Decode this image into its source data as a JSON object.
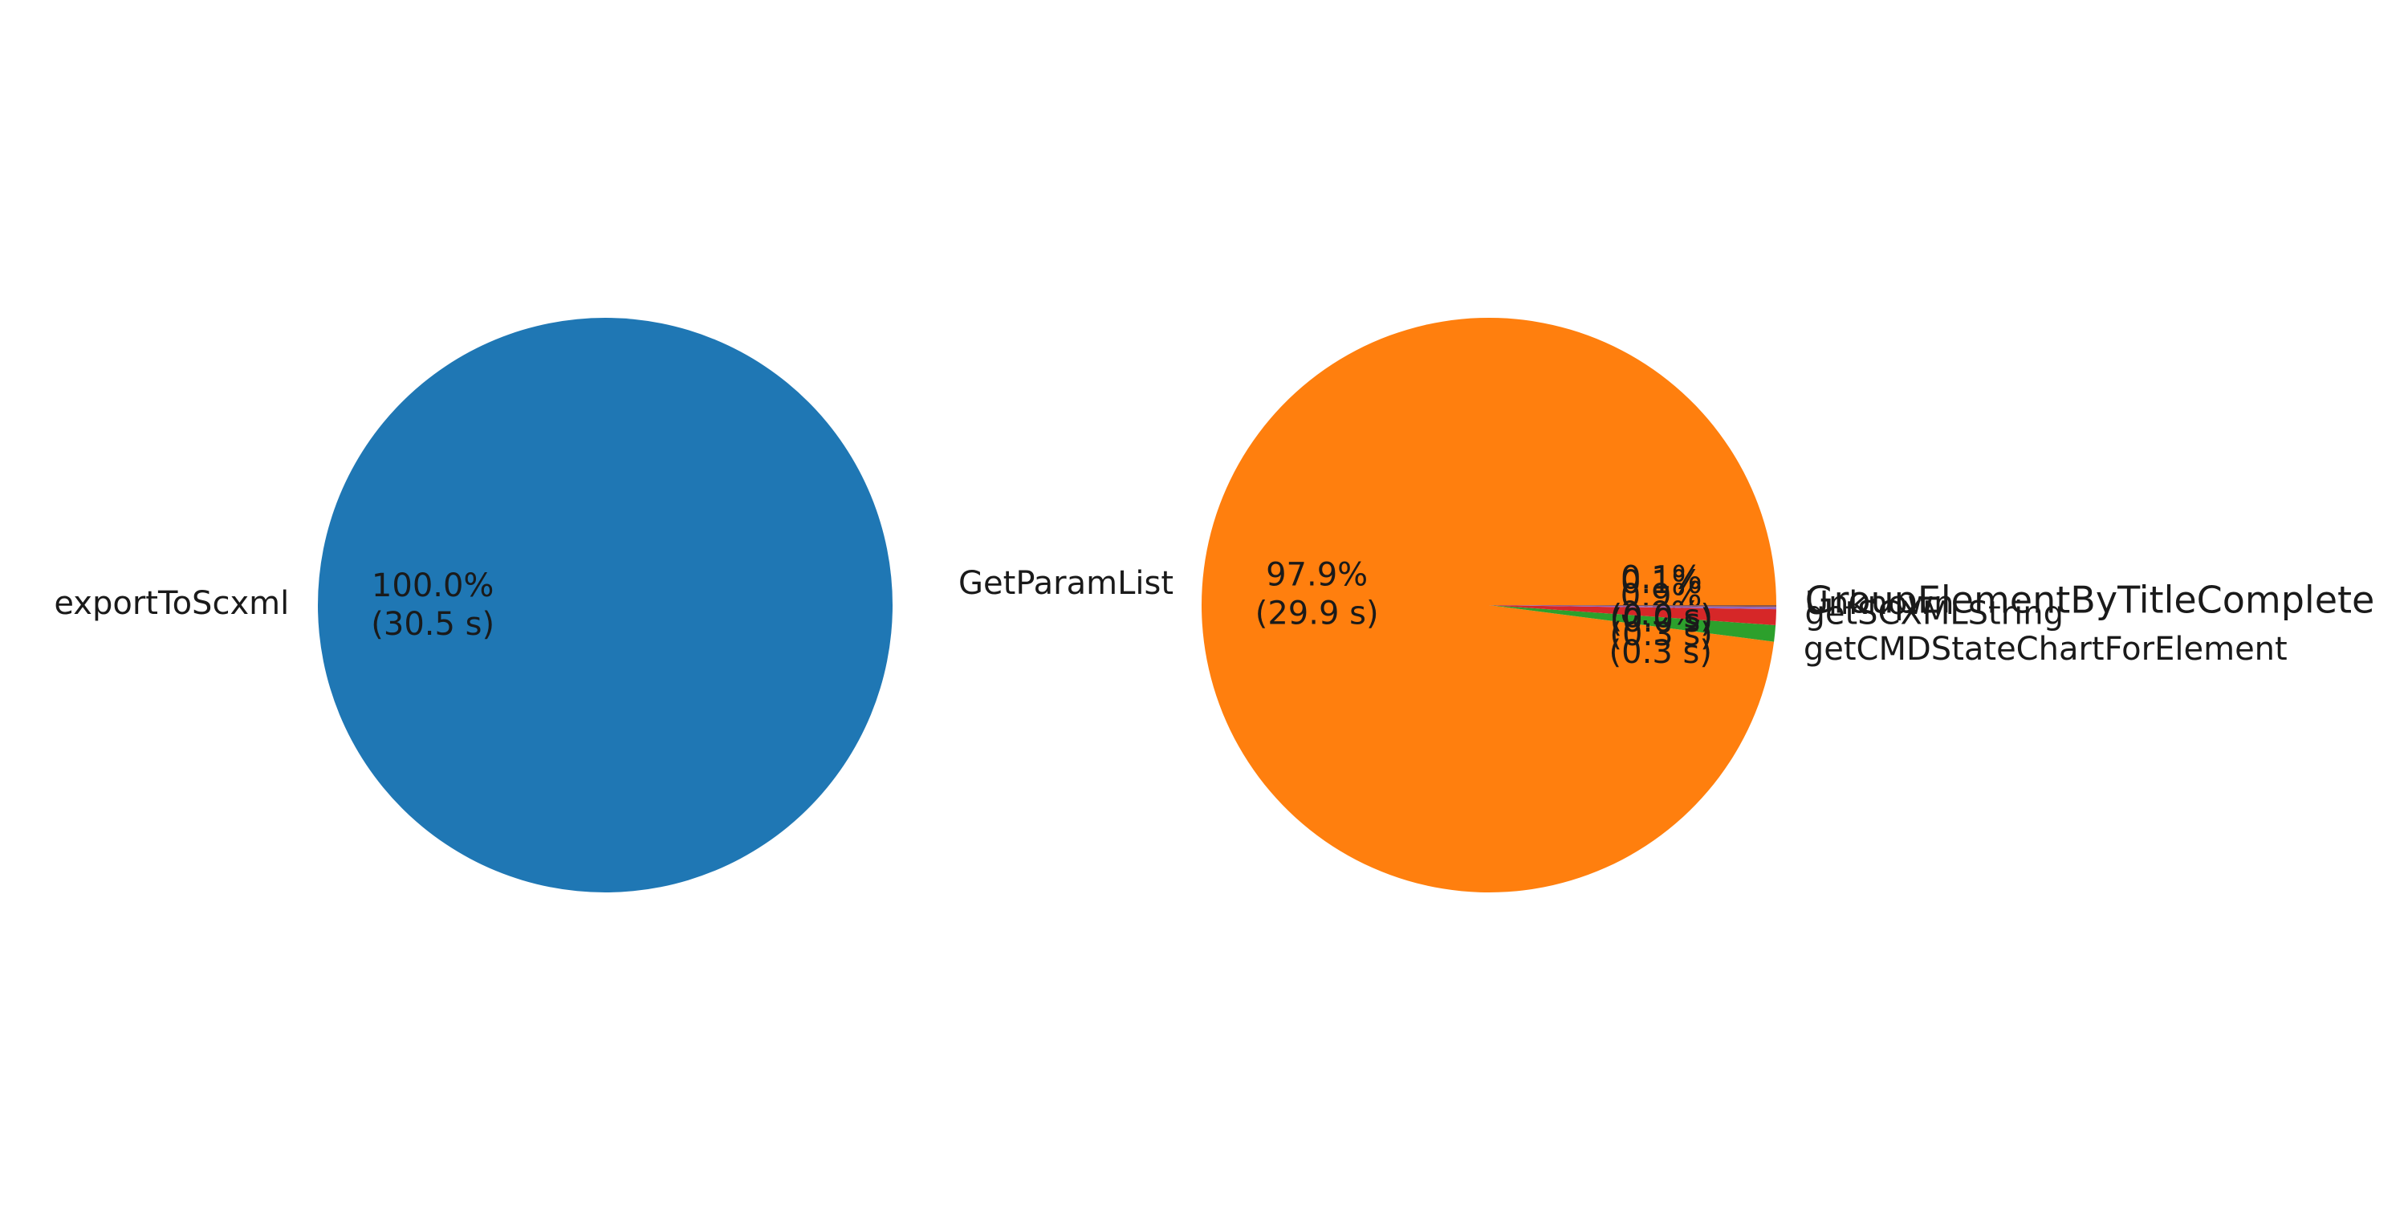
{
  "chart_data": [
    {
      "type": "pie",
      "title": "",
      "start_angle": 0,
      "counterclock": true,
      "slices": [
        {
          "label": "exportToScxml",
          "pct_text": "100.0%",
          "time_text": "(30.5 s)",
          "value": 30.5,
          "color": "#1f77b4"
        }
      ]
    },
    {
      "type": "pie",
      "title": "",
      "start_angle": 0,
      "counterclock": true,
      "slices": [
        {
          "label": "GetParamList",
          "pct_text": "97.9%",
          "time_text": "(29.9 s)",
          "value": 29.9,
          "color": "#ff7f0e"
        },
        {
          "label": "getCMDStateChartForElement",
          "pct_text": "0.9%",
          "time_text": "(0.3 s)",
          "value": 0.28,
          "color": "#2ca02c"
        },
        {
          "label": "getSCXMLString",
          "pct_text": "0.9%",
          "time_text": "(0.3 s)",
          "value": 0.27,
          "color": "#d62728"
        },
        {
          "label": "Unknown",
          "pct_text": "0.1%",
          "time_text": "(0.0 s)",
          "value": 0.04,
          "color": "#9467bd"
        },
        {
          "label": "GroupElementByTitleComplete",
          "pct_text": "0.1%",
          "time_text": "(0.0 s)",
          "value": 0.03,
          "color": "#8c564b"
        }
      ]
    }
  ]
}
